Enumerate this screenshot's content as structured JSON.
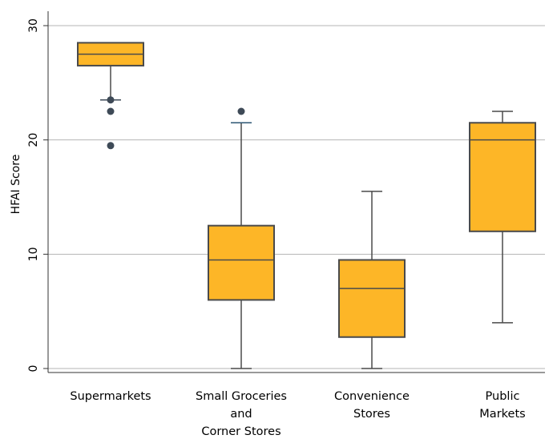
{
  "chart_data": {
    "type": "box",
    "title": "",
    "xlabel": "",
    "ylabel": "HFAI Score",
    "ylim": [
      0,
      30
    ],
    "yticks": [
      "0",
      "10",
      "20",
      "30"
    ],
    "grid": true,
    "categories": [
      {
        "label_lines": [
          "Supermarkets"
        ]
      },
      {
        "label_lines": [
          "Small Groceries",
          "and",
          "Corner Stores"
        ]
      },
      {
        "label_lines": [
          "Convenience",
          "Stores"
        ]
      },
      {
        "label_lines": [
          "Public",
          "Markets"
        ]
      }
    ],
    "boxes": [
      {
        "whisker_low": 23.5,
        "q1": 26.5,
        "median": 27.5,
        "q3": 28.5,
        "whisker_high": 28.5,
        "outliers": [
          23.5,
          22.5,
          19.5
        ]
      },
      {
        "whisker_low": 0,
        "q1": 6,
        "median": 9.5,
        "q3": 12.5,
        "whisker_high": 21.5,
        "outliers": [
          22.5
        ]
      },
      {
        "whisker_low": 0,
        "q1": 2.75,
        "median": 7,
        "q3": 9.5,
        "whisker_high": 15.5,
        "outliers": []
      },
      {
        "whisker_low": 4,
        "q1": 12,
        "median": 20,
        "q3": 21.5,
        "whisker_high": 22.5,
        "outliers": []
      }
    ],
    "colors": {
      "box_fill": "#fdb627",
      "box_stroke": "#4a4a4a",
      "outlier": "#3e4a57",
      "whisker_cap_1": "#3e4a57",
      "whisker_cap_2": "#2b5573",
      "grid": "#b4b4b4",
      "axis": "#333333"
    }
  }
}
